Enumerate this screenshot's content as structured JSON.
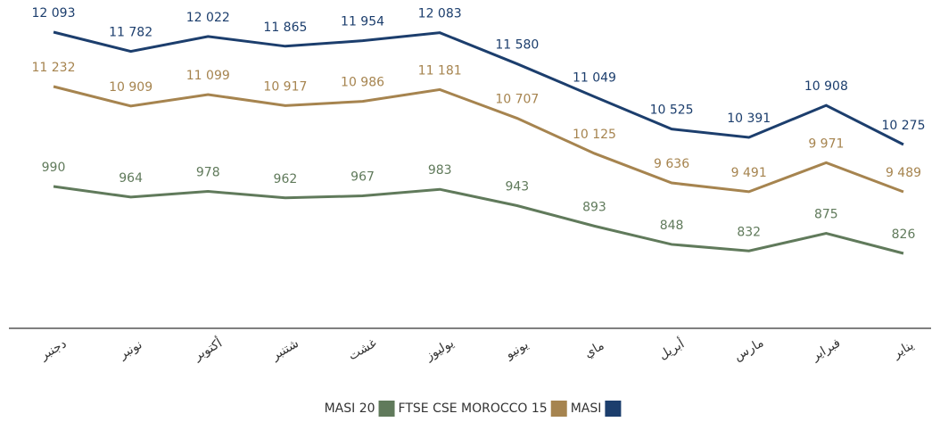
{
  "chart_data": {
    "type": "line",
    "categories": [
      "دجنبر",
      "نونبر",
      "أكتوبر",
      "شتنبر",
      "غشت",
      "يوليوز",
      "يونيو",
      "ماي",
      "أبريل",
      "مارس",
      "فبراير",
      "يناير"
    ],
    "series": [
      {
        "name": "MASI",
        "color": "#1c3e6d",
        "values": [
          12093,
          11782,
          12022,
          11865,
          11954,
          12083,
          11580,
          11049,
          10525,
          10391,
          10908,
          10275
        ],
        "value_labels": [
          "12 093",
          "11 782",
          "12 022",
          "11 865",
          "11 954",
          "12 083",
          "11 580",
          "11 049",
          "10 525",
          "10 391",
          "10 908",
          "10 275"
        ]
      },
      {
        "name": "FTSE CSE MOROCCO 15",
        "color": "#a6844f",
        "values": [
          11232,
          10909,
          11099,
          10917,
          10986,
          11181,
          10707,
          10125,
          9636,
          9491,
          9971,
          9489
        ],
        "value_labels": [
          "11 232",
          "10 909",
          "11 099",
          "10 917",
          "10 986",
          "11 181",
          "10 707",
          "10 125",
          "9 636",
          "9 491",
          "9 971",
          "9 489"
        ]
      },
      {
        "name": "MASI 20",
        "color": "#607a5b",
        "values": [
          990,
          964,
          978,
          962,
          967,
          983,
          943,
          893,
          848,
          832,
          875,
          826
        ]
      }
    ]
  }
}
